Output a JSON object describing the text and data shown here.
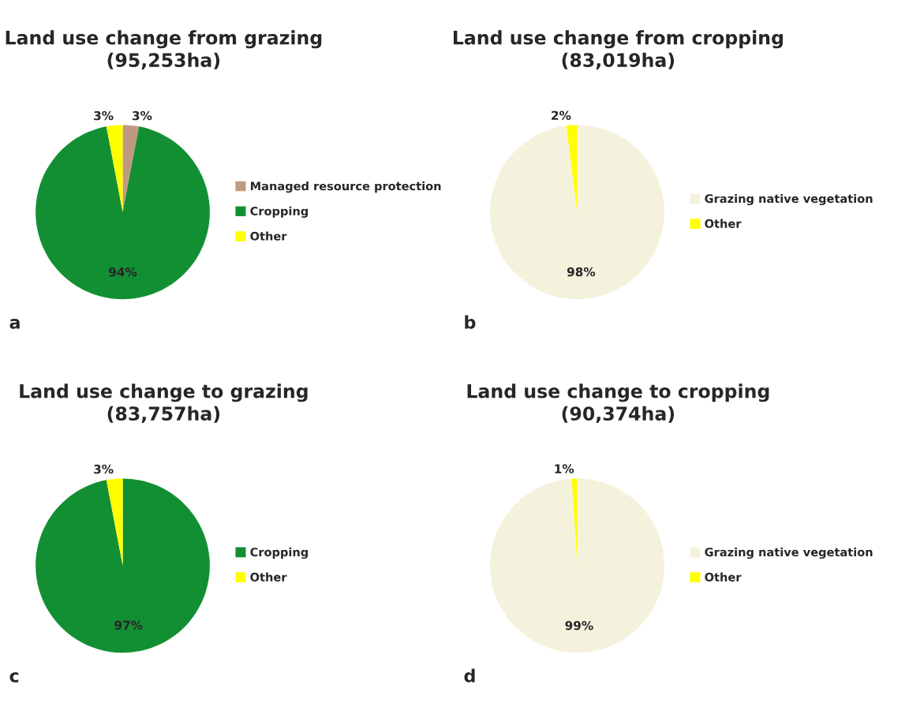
{
  "chart_data": [
    {
      "type": "pie",
      "title": "Land use change from grazing\n(95,253ha)",
      "categories": [
        "Managed resource protection",
        "Cropping",
        "Other"
      ],
      "values": [
        3,
        94,
        3
      ],
      "value_labels": [
        "3%",
        "94%",
        "3%"
      ],
      "colors": [
        "#c09a80",
        "#138f33",
        "#ffff00"
      ],
      "legend": "right",
      "annotations": [
        "a"
      ]
    },
    {
      "type": "pie",
      "title": "Land use change from cropping\n(83,019ha)",
      "categories": [
        "Grazing native vegetation",
        "Other"
      ],
      "values": [
        98,
        2
      ],
      "value_labels": [
        "98%",
        "2%"
      ],
      "colors": [
        "#f4f2dc",
        "#ffff00"
      ],
      "legend": "right",
      "annotations": [
        "b"
      ]
    },
    {
      "type": "pie",
      "title": "Land use change to grazing\n(83,757ha)",
      "categories": [
        "Cropping",
        "Other"
      ],
      "values": [
        97,
        3
      ],
      "value_labels": [
        "97%",
        "3%"
      ],
      "colors": [
        "#138f33",
        "#ffff00"
      ],
      "legend": "right",
      "annotations": [
        "c"
      ]
    },
    {
      "type": "pie",
      "title": "Land use change to cropping\n(90,374ha)",
      "categories": [
        "Grazing native vegetation",
        "Other"
      ],
      "values": [
        99,
        1
      ],
      "value_labels": [
        "99%",
        "1%"
      ],
      "colors": [
        "#f4f2dc",
        "#ffff00"
      ],
      "legend": "right",
      "annotations": [
        "d"
      ]
    }
  ]
}
